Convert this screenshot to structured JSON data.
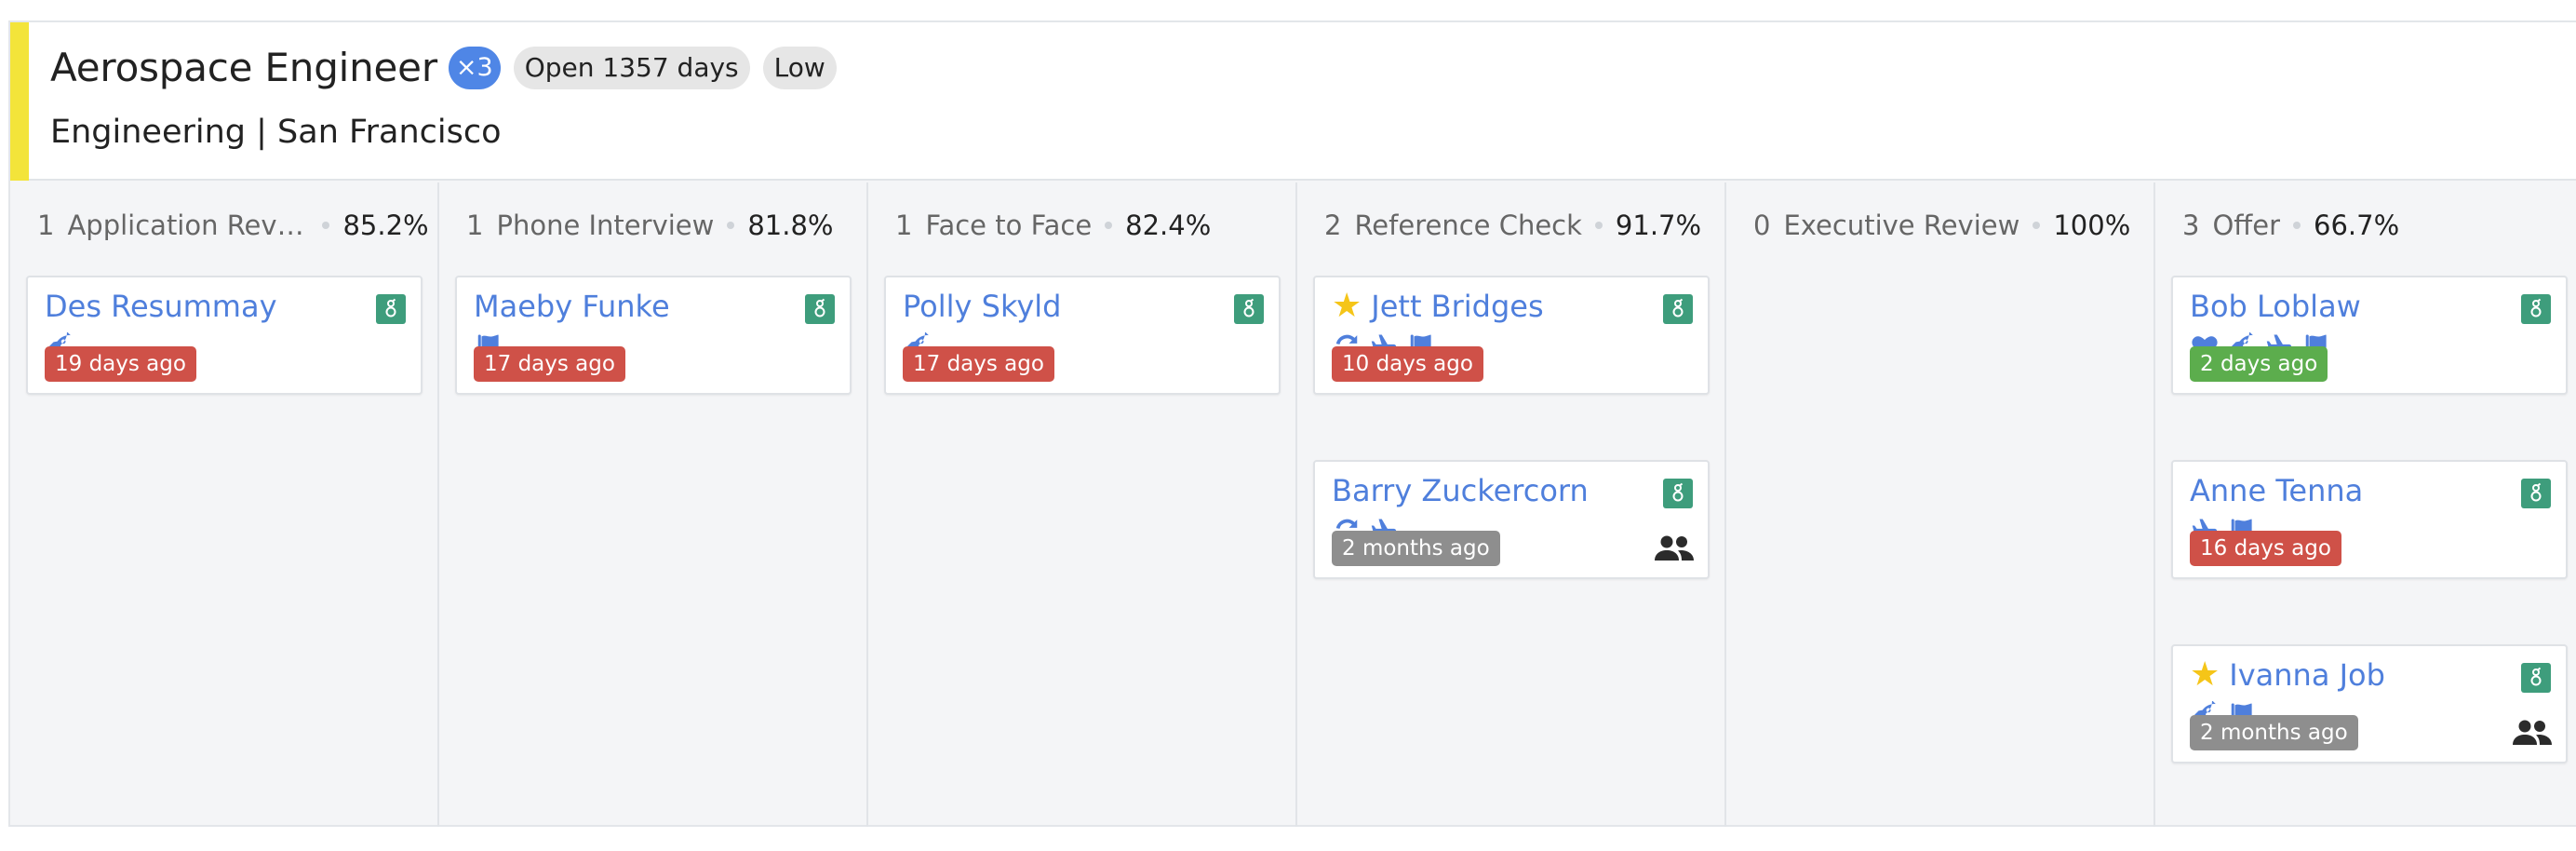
{
  "job": {
    "title": "Aerospace Engineer",
    "openings": "×3",
    "open_days": "Open 1357 days",
    "priority": "Low",
    "subtitle": "Engineering | San Francisco",
    "accent_color": "#f3e43a"
  },
  "colors": {
    "link_blue": "#4f7fdc",
    "badge_green": "#3e9d7c",
    "age_red": "#cf5148",
    "age_green": "#5cad4d",
    "age_gray": "#8e8e8e",
    "star_yellow": "#f5c518"
  },
  "stages": [
    {
      "count": "1",
      "name": "Application Review",
      "name_display": "Application Revi…",
      "pct": "85.2%",
      "cards": [
        {
          "name": "Des Resummay",
          "starred": false,
          "icons": [
            "rocket-icon"
          ],
          "age": "19 days ago",
          "age_status": "red",
          "people": false
        }
      ]
    },
    {
      "count": "1",
      "name": "Phone Interview",
      "name_display": "Phone Interview",
      "pct": "81.8%",
      "cards": [
        {
          "name": "Maeby Funke",
          "starred": false,
          "icons": [
            "flag-icon"
          ],
          "age": "17 days ago",
          "age_status": "red",
          "people": false
        }
      ]
    },
    {
      "count": "1",
      "name": "Face to Face",
      "name_display": "Face to Face",
      "pct": "82.4%",
      "cards": [
        {
          "name": "Polly Skyld",
          "starred": false,
          "icons": [
            "rocket-icon"
          ],
          "age": "17 days ago",
          "age_status": "red",
          "people": false
        }
      ]
    },
    {
      "count": "2",
      "name": "Reference Check",
      "name_display": "Reference Check",
      "pct": "91.7%",
      "cards": [
        {
          "name": "Jett Bridges",
          "starred": true,
          "icons": [
            "sync-icon",
            "plane-icon",
            "flag-icon"
          ],
          "age": "10 days ago",
          "age_status": "red",
          "people": false
        },
        {
          "name": "Barry Zuckercorn",
          "starred": false,
          "icons": [
            "sync-icon",
            "plane-icon"
          ],
          "age": "2 months ago",
          "age_status": "gray",
          "people": true
        }
      ]
    },
    {
      "count": "0",
      "name": "Executive Review",
      "name_display": "Executive Review",
      "pct": "100%",
      "cards": []
    },
    {
      "count": "3",
      "name": "Offer",
      "name_display": "Offer",
      "pct": "66.7%",
      "cards": [
        {
          "name": "Bob Loblaw",
          "starred": false,
          "icons": [
            "heart-icon",
            "rocket-icon",
            "plane-icon",
            "flag-icon"
          ],
          "age": "2 days ago",
          "age_status": "green",
          "people": false
        },
        {
          "name": "Anne Tenna",
          "starred": false,
          "icons": [
            "plane-icon",
            "flag-icon"
          ],
          "age": "16 days ago",
          "age_status": "red",
          "people": false
        },
        {
          "name": "Ivanna Job",
          "starred": true,
          "icons": [
            "rocket-icon",
            "flag-icon"
          ],
          "age": "2 months ago",
          "age_status": "gray",
          "people": true
        }
      ]
    }
  ]
}
